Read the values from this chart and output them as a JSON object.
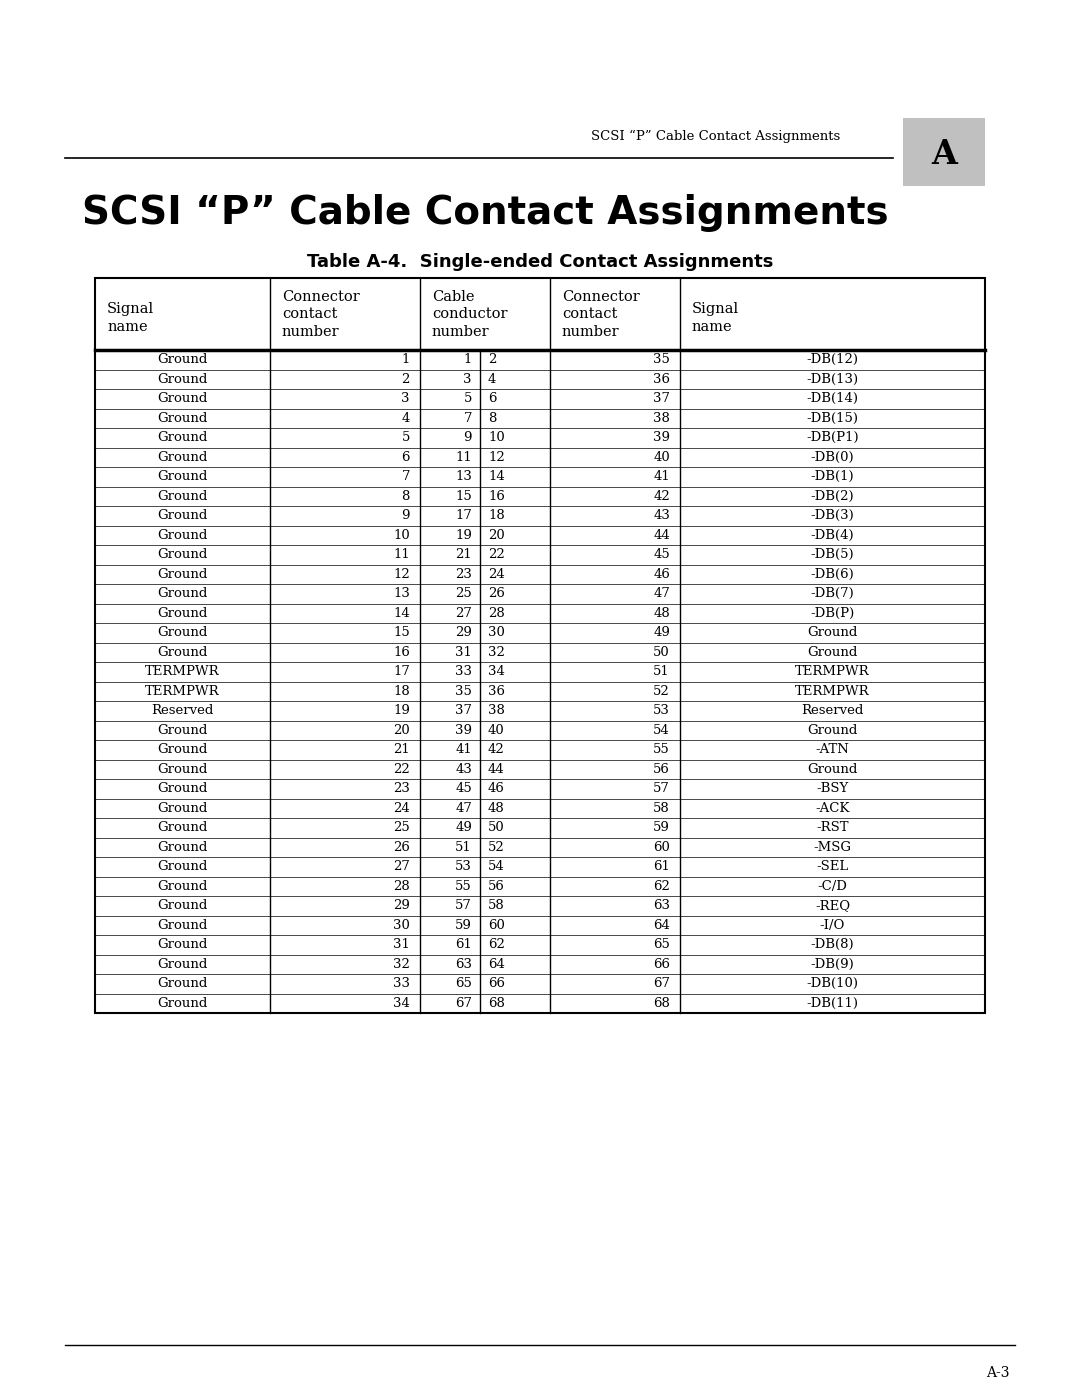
{
  "page_header": "SCSI “P” Cable Contact Assignments",
  "chapter_label": "A",
  "main_title": "SCSI “P” Cable Contact Assignments",
  "table_title": "Table A-4.  Single-ended Contact Assignments",
  "rows": [
    [
      "Ground",
      "1",
      "1",
      "2",
      "35",
      "-DB(12)"
    ],
    [
      "Ground",
      "2",
      "3",
      "4",
      "36",
      "-DB(13)"
    ],
    [
      "Ground",
      "3",
      "5",
      "6",
      "37",
      "-DB(14)"
    ],
    [
      "Ground",
      "4",
      "7",
      "8",
      "38",
      "-DB(15)"
    ],
    [
      "Ground",
      "5",
      "9",
      "10",
      "39",
      "-DB(P1)"
    ],
    [
      "Ground",
      "6",
      "11",
      "12",
      "40",
      "-DB(0)"
    ],
    [
      "Ground",
      "7",
      "13",
      "14",
      "41",
      "-DB(1)"
    ],
    [
      "Ground",
      "8",
      "15",
      "16",
      "42",
      "-DB(2)"
    ],
    [
      "Ground",
      "9",
      "17",
      "18",
      "43",
      "-DB(3)"
    ],
    [
      "Ground",
      "10",
      "19",
      "20",
      "44",
      "-DB(4)"
    ],
    [
      "Ground",
      "11",
      "21",
      "22",
      "45",
      "-DB(5)"
    ],
    [
      "Ground",
      "12",
      "23",
      "24",
      "46",
      "-DB(6)"
    ],
    [
      "Ground",
      "13",
      "25",
      "26",
      "47",
      "-DB(7)"
    ],
    [
      "Ground",
      "14",
      "27",
      "28",
      "48",
      "-DB(P)"
    ],
    [
      "Ground",
      "15",
      "29",
      "30",
      "49",
      "Ground"
    ],
    [
      "Ground",
      "16",
      "31",
      "32",
      "50",
      "Ground"
    ],
    [
      "TERMPWR",
      "17",
      "33",
      "34",
      "51",
      "TERMPWR"
    ],
    [
      "TERMPWR",
      "18",
      "35",
      "36",
      "52",
      "TERMPWR"
    ],
    [
      "Reserved",
      "19",
      "37",
      "38",
      "53",
      "Reserved"
    ],
    [
      "Ground",
      "20",
      "39",
      "40",
      "54",
      "Ground"
    ],
    [
      "Ground",
      "21",
      "41",
      "42",
      "55",
      "-ATN"
    ],
    [
      "Ground",
      "22",
      "43",
      "44",
      "56",
      "Ground"
    ],
    [
      "Ground",
      "23",
      "45",
      "46",
      "57",
      "-BSY"
    ],
    [
      "Ground",
      "24",
      "47",
      "48",
      "58",
      "-ACK"
    ],
    [
      "Ground",
      "25",
      "49",
      "50",
      "59",
      "-RST"
    ],
    [
      "Ground",
      "26",
      "51",
      "52",
      "60",
      "-MSG"
    ],
    [
      "Ground",
      "27",
      "53",
      "54",
      "61",
      "-SEL"
    ],
    [
      "Ground",
      "28",
      "55",
      "56",
      "62",
      "-C/D"
    ],
    [
      "Ground",
      "29",
      "57",
      "58",
      "63",
      "-REQ"
    ],
    [
      "Ground",
      "30",
      "59",
      "60",
      "64",
      "-I/O"
    ],
    [
      "Ground",
      "31",
      "61",
      "62",
      "65",
      "-DB(8)"
    ],
    [
      "Ground",
      "32",
      "63",
      "64",
      "66",
      "-DB(9)"
    ],
    [
      "Ground",
      "33",
      "65",
      "66",
      "67",
      "-DB(10)"
    ],
    [
      "Ground",
      "34",
      "67",
      "68",
      "68",
      "-DB(11)"
    ]
  ],
  "footer_text": "A-3",
  "bg_color": "#ffffff",
  "text_color": "#000000"
}
